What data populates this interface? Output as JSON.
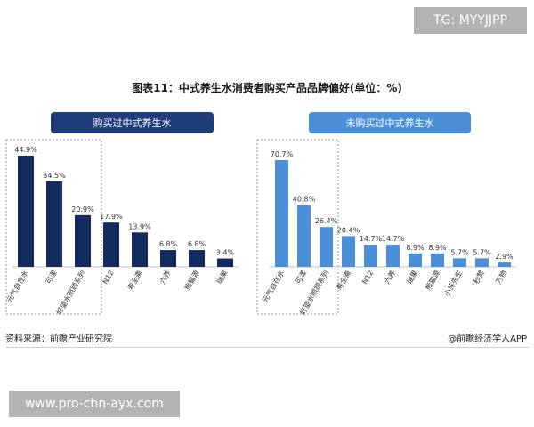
{
  "watermark_top": "TG: MYYJJPP",
  "figure_title": "图表11：中式养生水消费者购买产品品牌偏好(单位：%)",
  "panels": {
    "left_label": "购买过中式养生水",
    "right_label": "未购买过中式养生水"
  },
  "colors": {
    "left_bar": "#152a5e",
    "right_bar": "#4b8fd8",
    "left_header": "#1e3d7a",
    "right_header": "#4b8fd8"
  },
  "chart_data": [
    {
      "type": "bar",
      "title": "购买过中式养生水",
      "categories": [
        "元气自在水",
        "可漾",
        "好望水照顾系列",
        "N12",
        "寿全斋",
        "六养",
        "熊猫源",
        "瑞果"
      ],
      "values": [
        44.9,
        34.5,
        20.9,
        17.9,
        13.9,
        6.8,
        6.8,
        3.4
      ],
      "value_labels": [
        "44.9%",
        "34.5%",
        "20.9%",
        "17.9%",
        "13.9%",
        "6.8%",
        "6.8%",
        "3.4%"
      ],
      "unit": "%",
      "ylim": [
        0,
        50
      ],
      "highlighted_categories": 3
    },
    {
      "type": "bar",
      "title": "未购买过中式养生水",
      "categories": [
        "元气自在水",
        "可漾",
        "好望水照顾系列",
        "寿全斋",
        "N12",
        "六养",
        "瑞果",
        "熊猫源",
        "小苏先生",
        "秒赞",
        "万物"
      ],
      "values": [
        70.7,
        40.8,
        26.4,
        20.4,
        14.7,
        14.7,
        8.9,
        8.9,
        5.7,
        5.7,
        2.9
      ],
      "value_labels": [
        "70.7%",
        "40.8%",
        "26.4%",
        "20.4%",
        "14.7%",
        "14.7%",
        "8.9%",
        "8.9%",
        "5.7%",
        "5.7%",
        "2.9%"
      ],
      "unit": "%",
      "ylim": [
        0,
        80
      ],
      "highlighted_categories": 3
    }
  ],
  "footer": {
    "source": "资料来源：前瞻产业研究院",
    "brand": "@前瞻经济学人APP"
  },
  "watermark_bottom": "www.pro-chn-ayx.com"
}
